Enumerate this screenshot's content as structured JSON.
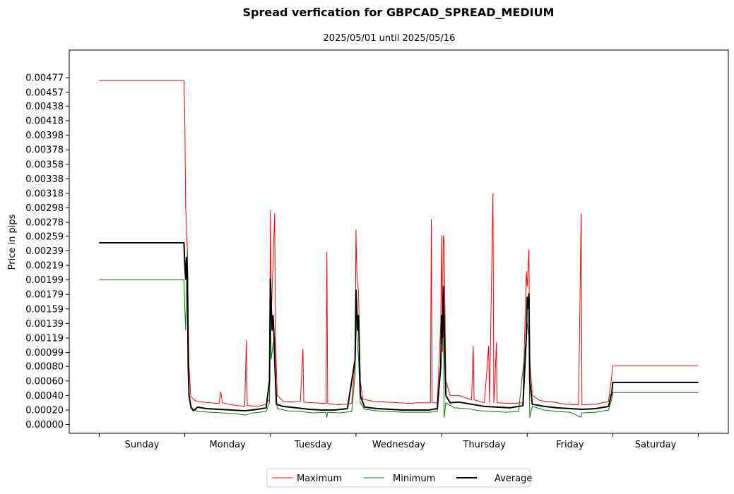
{
  "chart_data": {
    "type": "line",
    "title": "Spread verfication for GBPCAD_SPREAD_MEDIUM",
    "subtitle": "2025/05/01 until 2025/05/16",
    "ylabel": "Price in pips",
    "xlabel": "",
    "ylim": [
      -0.00012,
      0.00515
    ],
    "xlim": [
      -0.35,
      7.35
    ],
    "yticks": [
      "0.00000",
      "0.00020",
      "0.00040",
      "0.00060",
      "0.00080",
      "0.00099",
      "0.00119",
      "0.00139",
      "0.00159",
      "0.00179",
      "0.00199",
      "0.00219",
      "0.00239",
      "0.00259",
      "0.00278",
      "0.00298",
      "0.00318",
      "0.00338",
      "0.00358",
      "0.00378",
      "0.00398",
      "0.00418",
      "0.00438",
      "0.00457",
      "0.00477"
    ],
    "categories": [
      "Sunday",
      "Monday",
      "Tuesday",
      "Wednesday",
      "Thursday",
      "Friday",
      "Saturday"
    ],
    "legend_position": "bottom-center",
    "grid": false,
    "series": [
      {
        "name": "Maximum",
        "color": "#ff0000",
        "points": [
          [
            0,
            0.00473
          ],
          [
            0.99,
            0.00473
          ],
          [
            1.0,
            0.0042
          ],
          [
            1.01,
            0.003
          ],
          [
            1.03,
            0.0024
          ],
          [
            1.05,
            0.0008
          ],
          [
            1.07,
            0.00038
          ],
          [
            1.12,
            0.00033
          ],
          [
            1.2,
            0.00031
          ],
          [
            1.3,
            0.0003
          ],
          [
            1.4,
            0.00029
          ],
          [
            1.42,
            0.00045
          ],
          [
            1.44,
            0.0003
          ],
          [
            1.55,
            0.00027
          ],
          [
            1.7,
            0.00025
          ],
          [
            1.72,
            0.00116
          ],
          [
            1.73,
            0.00026
          ],
          [
            1.85,
            0.00025
          ],
          [
            1.95,
            0.00028
          ],
          [
            1.99,
            0.00035
          ],
          [
            2.0,
            0.00295
          ],
          [
            2.01,
            0.0015
          ],
          [
            2.03,
            0.0022
          ],
          [
            2.05,
            0.0029
          ],
          [
            2.06,
            0.0012
          ],
          [
            2.08,
            0.0004
          ],
          [
            2.15,
            0.00032
          ],
          [
            2.25,
            0.00031
          ],
          [
            2.35,
            0.00032
          ],
          [
            2.38,
            0.00104
          ],
          [
            2.39,
            0.00031
          ],
          [
            2.5,
            0.0003
          ],
          [
            2.65,
            0.00029
          ],
          [
            2.66,
            0.00237
          ],
          [
            2.67,
            0.00029
          ],
          [
            2.8,
            0.00027
          ],
          [
            2.95,
            0.00029
          ],
          [
            2.99,
            0.0009
          ],
          [
            3.0,
            0.00268
          ],
          [
            3.01,
            0.0021
          ],
          [
            3.03,
            0.0018
          ],
          [
            3.05,
            0.0006
          ],
          [
            3.08,
            0.00035
          ],
          [
            3.2,
            0.00032
          ],
          [
            3.35,
            0.00031
          ],
          [
            3.5,
            0.0003
          ],
          [
            3.65,
            0.00029
          ],
          [
            3.7,
            0.0003
          ],
          [
            3.87,
            0.0003
          ],
          [
            3.88,
            0.00282
          ],
          [
            3.89,
            0.0003
          ],
          [
            3.95,
            0.0003
          ],
          [
            3.99,
            0.0014
          ],
          [
            4.0,
            0.0026
          ],
          [
            4.01,
            0.001
          ],
          [
            4.02,
            0.0026
          ],
          [
            4.03,
            0.0025
          ],
          [
            4.05,
            0.0006
          ],
          [
            4.1,
            0.0004
          ],
          [
            4.2,
            0.0004
          ],
          [
            4.35,
            0.00034
          ],
          [
            4.37,
            0.00108
          ],
          [
            4.38,
            0.00034
          ],
          [
            4.5,
            0.0003
          ],
          [
            4.55,
            0.00108
          ],
          [
            4.56,
            0.0003
          ],
          [
            4.6,
            0.00318
          ],
          [
            4.61,
            0.0003
          ],
          [
            4.62,
            0.00048
          ],
          [
            4.64,
            0.00113
          ],
          [
            4.65,
            0.0003
          ],
          [
            4.8,
            0.00029
          ],
          [
            4.95,
            0.0003
          ],
          [
            4.99,
            0.0021
          ],
          [
            5.0,
            0.0019
          ],
          [
            5.02,
            0.0024
          ],
          [
            5.03,
            0.0009
          ],
          [
            5.06,
            0.0004
          ],
          [
            5.15,
            0.00033
          ],
          [
            5.3,
            0.00031
          ],
          [
            5.45,
            0.00028
          ],
          [
            5.6,
            0.00027
          ],
          [
            5.63,
            0.0029
          ],
          [
            5.64,
            0.00027
          ],
          [
            5.8,
            0.00028
          ],
          [
            5.95,
            0.00032
          ],
          [
            5.99,
            0.00069
          ],
          [
            6.0,
            0.00081
          ],
          [
            7.0,
            0.00081
          ]
        ]
      },
      {
        "name": "Minimum",
        "color": "#008000",
        "points": [
          [
            0,
            0.00199
          ],
          [
            0.99,
            0.00199
          ],
          [
            1.0,
            0.0016
          ],
          [
            1.01,
            0.0013
          ],
          [
            1.03,
            0.0024
          ],
          [
            1.05,
            0.0004
          ],
          [
            1.07,
            0.00022
          ],
          [
            1.15,
            0.00018
          ],
          [
            1.3,
            0.00017
          ],
          [
            1.45,
            0.00016
          ],
          [
            1.6,
            0.00015
          ],
          [
            1.7,
            0.00013
          ],
          [
            1.8,
            0.00016
          ],
          [
            1.95,
            0.00018
          ],
          [
            1.99,
            0.0003
          ],
          [
            2.0,
            0.0017
          ],
          [
            2.01,
            0.0009
          ],
          [
            2.03,
            0.0011
          ],
          [
            2.05,
            0.0012
          ],
          [
            2.06,
            0.0006
          ],
          [
            2.08,
            0.00022
          ],
          [
            2.2,
            0.00019
          ],
          [
            2.35,
            0.00018
          ],
          [
            2.5,
            0.00016
          ],
          [
            2.65,
            0.00017
          ],
          [
            2.66,
            0.0001
          ],
          [
            2.67,
            0.00017
          ],
          [
            2.8,
            0.00016
          ],
          [
            2.95,
            0.00018
          ],
          [
            2.99,
            0.0007
          ],
          [
            3.0,
            0.0017
          ],
          [
            3.01,
            0.0012
          ],
          [
            3.03,
            0.0009
          ],
          [
            3.05,
            0.0003
          ],
          [
            3.1,
            0.00021
          ],
          [
            3.25,
            0.00019
          ],
          [
            3.4,
            0.00018
          ],
          [
            3.55,
            0.00017
          ],
          [
            3.7,
            0.00017
          ],
          [
            3.85,
            0.00017
          ],
          [
            3.95,
            0.00018
          ],
          [
            3.99,
            0.0008
          ],
          [
            4.0,
            0.0012
          ],
          [
            4.01,
            0.0011
          ],
          [
            4.02,
            0.0015
          ],
          [
            4.03,
            0.0001
          ],
          [
            4.05,
            0.0003
          ],
          [
            4.15,
            0.00023
          ],
          [
            4.3,
            0.00022
          ],
          [
            4.45,
            0.00019
          ],
          [
            4.6,
            0.00018
          ],
          [
            4.75,
            0.00017
          ],
          [
            4.9,
            0.00018
          ],
          [
            4.99,
            0.0012
          ],
          [
            5.0,
            0.0014
          ],
          [
            5.02,
            0.0012
          ],
          [
            5.03,
            0.0001
          ],
          [
            5.06,
            0.00025
          ],
          [
            5.2,
            0.0002
          ],
          [
            5.35,
            0.00018
          ],
          [
            5.5,
            0.00017
          ],
          [
            5.63,
            0.0001
          ],
          [
            5.64,
            0.00016
          ],
          [
            5.8,
            0.00017
          ],
          [
            5.95,
            0.0002
          ],
          [
            5.99,
            0.00036
          ],
          [
            6.0,
            0.00044
          ],
          [
            7.0,
            0.00044
          ]
        ]
      },
      {
        "name": "Average",
        "color": "#000000",
        "points": [
          [
            0,
            0.0025
          ],
          [
            0.99,
            0.0025
          ],
          [
            1.0,
            0.0022
          ],
          [
            1.01,
            0.002
          ],
          [
            1.02,
            0.0023
          ],
          [
            1.03,
            0.0021
          ],
          [
            1.04,
            0.0008
          ],
          [
            1.05,
            0.0004
          ],
          [
            1.07,
            0.00025
          ],
          [
            1.1,
            0.00019
          ],
          [
            1.15,
            0.00024
          ],
          [
            1.25,
            0.00022
          ],
          [
            1.4,
            0.00021
          ],
          [
            1.55,
            0.0002
          ],
          [
            1.7,
            0.00019
          ],
          [
            1.85,
            0.00021
          ],
          [
            1.95,
            0.00023
          ],
          [
            1.99,
            0.0006
          ],
          [
            2.0,
            0.002
          ],
          [
            2.01,
            0.0016
          ],
          [
            2.02,
            0.0013
          ],
          [
            2.03,
            0.0015
          ],
          [
            2.04,
            0.0013
          ],
          [
            2.05,
            0.0009
          ],
          [
            2.07,
            0.00028
          ],
          [
            2.15,
            0.00025
          ],
          [
            2.3,
            0.00023
          ],
          [
            2.45,
            0.00021
          ],
          [
            2.6,
            0.0002
          ],
          [
            2.75,
            0.0002
          ],
          [
            2.9,
            0.00022
          ],
          [
            2.99,
            0.0009
          ],
          [
            3.0,
            0.00185
          ],
          [
            3.01,
            0.0016
          ],
          [
            3.02,
            0.0013
          ],
          [
            3.03,
            0.0015
          ],
          [
            3.05,
            0.0004
          ],
          [
            3.1,
            0.00024
          ],
          [
            3.25,
            0.00022
          ],
          [
            3.4,
            0.00021
          ],
          [
            3.55,
            0.0002
          ],
          [
            3.7,
            0.0002
          ],
          [
            3.85,
            0.0002
          ],
          [
            3.95,
            0.00022
          ],
          [
            3.99,
            0.0008
          ],
          [
            4.0,
            0.0015
          ],
          [
            4.01,
            0.0012
          ],
          [
            4.02,
            0.0019
          ],
          [
            4.03,
            0.0014
          ],
          [
            4.05,
            0.0004
          ],
          [
            4.1,
            0.0003
          ],
          [
            4.2,
            0.00031
          ],
          [
            4.35,
            0.00028
          ],
          [
            4.5,
            0.00025
          ],
          [
            4.65,
            0.00024
          ],
          [
            4.8,
            0.00023
          ],
          [
            4.95,
            0.00026
          ],
          [
            4.99,
            0.0012
          ],
          [
            5.0,
            0.00175
          ],
          [
            5.01,
            0.0016
          ],
          [
            5.02,
            0.0018
          ],
          [
            5.03,
            0.0006
          ],
          [
            5.06,
            0.00028
          ],
          [
            5.2,
            0.00025
          ],
          [
            5.35,
            0.00023
          ],
          [
            5.5,
            0.00022
          ],
          [
            5.65,
            0.00021
          ],
          [
            5.8,
            0.00022
          ],
          [
            5.95,
            0.00025
          ],
          [
            5.99,
            0.00045
          ],
          [
            6.0,
            0.00058
          ],
          [
            7.0,
            0.00058
          ]
        ]
      }
    ]
  }
}
